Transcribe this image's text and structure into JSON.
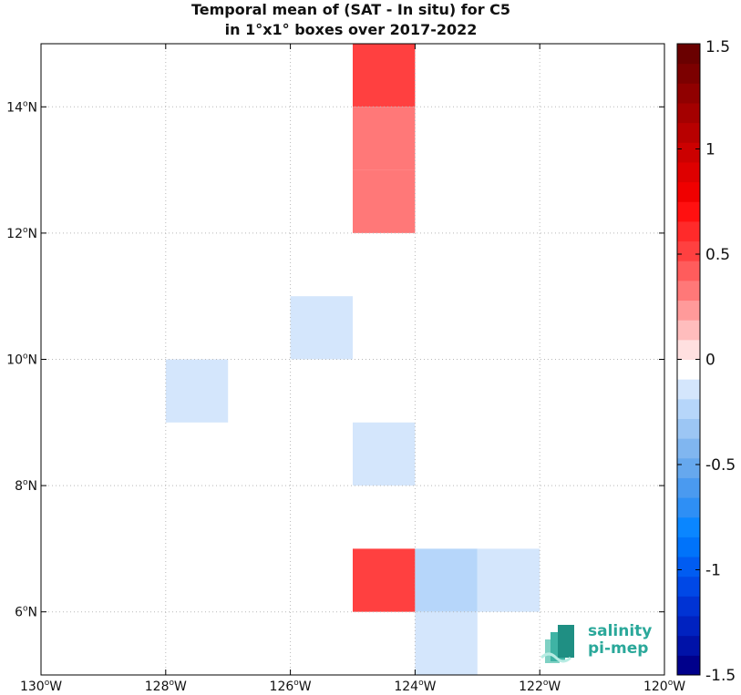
{
  "chart_data": {
    "type": "heatmap",
    "title": [
      "Temporal mean of (SAT - In situ) for C5",
      "in 1°x1° boxes over 2017-2022"
    ],
    "xlim": [
      -130,
      -120
    ],
    "ylim": [
      5,
      15
    ],
    "x_ticks": [
      -130,
      -128,
      -126,
      -124,
      -122,
      -120
    ],
    "y_ticks": [
      6,
      8,
      10,
      12,
      14
    ],
    "x_tick_labels": [
      "130",
      "128",
      "126",
      "124",
      "122",
      "120"
    ],
    "x_tick_suffix": "W",
    "y_tick_labels": [
      "6",
      "8",
      "10",
      "12",
      "14"
    ],
    "y_tick_suffix": "N",
    "grid": true,
    "cells": [
      {
        "lon": -125,
        "lat": 14,
        "value": 0.55
      },
      {
        "lon": -125,
        "lat": 13,
        "value": 0.3
      },
      {
        "lon": -125,
        "lat": 12,
        "value": 0.3
      },
      {
        "lon": -126,
        "lat": 10,
        "value": -0.1
      },
      {
        "lon": -128,
        "lat": 9,
        "value": -0.1
      },
      {
        "lon": -125,
        "lat": 8,
        "value": -0.1
      },
      {
        "lon": -125,
        "lat": 6,
        "value": 0.55
      },
      {
        "lon": -124,
        "lat": 6,
        "value": -0.2
      },
      {
        "lon": -123,
        "lat": 6,
        "value": -0.1
      },
      {
        "lon": -124,
        "lat": 5,
        "value": -0.1
      }
    ],
    "colorbar": {
      "range": [
        -1.5,
        1.5
      ],
      "ticks": [
        1.5,
        1,
        0.5,
        0,
        -0.5,
        -1,
        -1.5
      ],
      "tick_labels": [
        "1.5",
        "1",
        "0.5",
        "0",
        "-0.5",
        "-1",
        "-1.5"
      ],
      "colors": [
        "#00008b",
        "#0012a8",
        "#0022c0",
        "#0033d4",
        "#0048e6",
        "#005cf2",
        "#0073fa",
        "#0a86ff",
        "#2e8ff5",
        "#4a9af0",
        "#66a8ee",
        "#80b6f0",
        "#9cc6f4",
        "#b6d6fa",
        "#d4e6fc",
        "#ffffff",
        "#ffe0e0",
        "#ffbdbd",
        "#ff9a9a",
        "#ff7878",
        "#ff5c5c",
        "#ff4040",
        "#ff2a2a",
        "#ff1010",
        "#f00000",
        "#de0000",
        "#cc0000",
        "#b80000",
        "#a40000",
        "#900000",
        "#7c0000",
        "#6a0000"
      ]
    }
  },
  "logo": {
    "line1": "salinity",
    "line2": "pi-mep"
  }
}
